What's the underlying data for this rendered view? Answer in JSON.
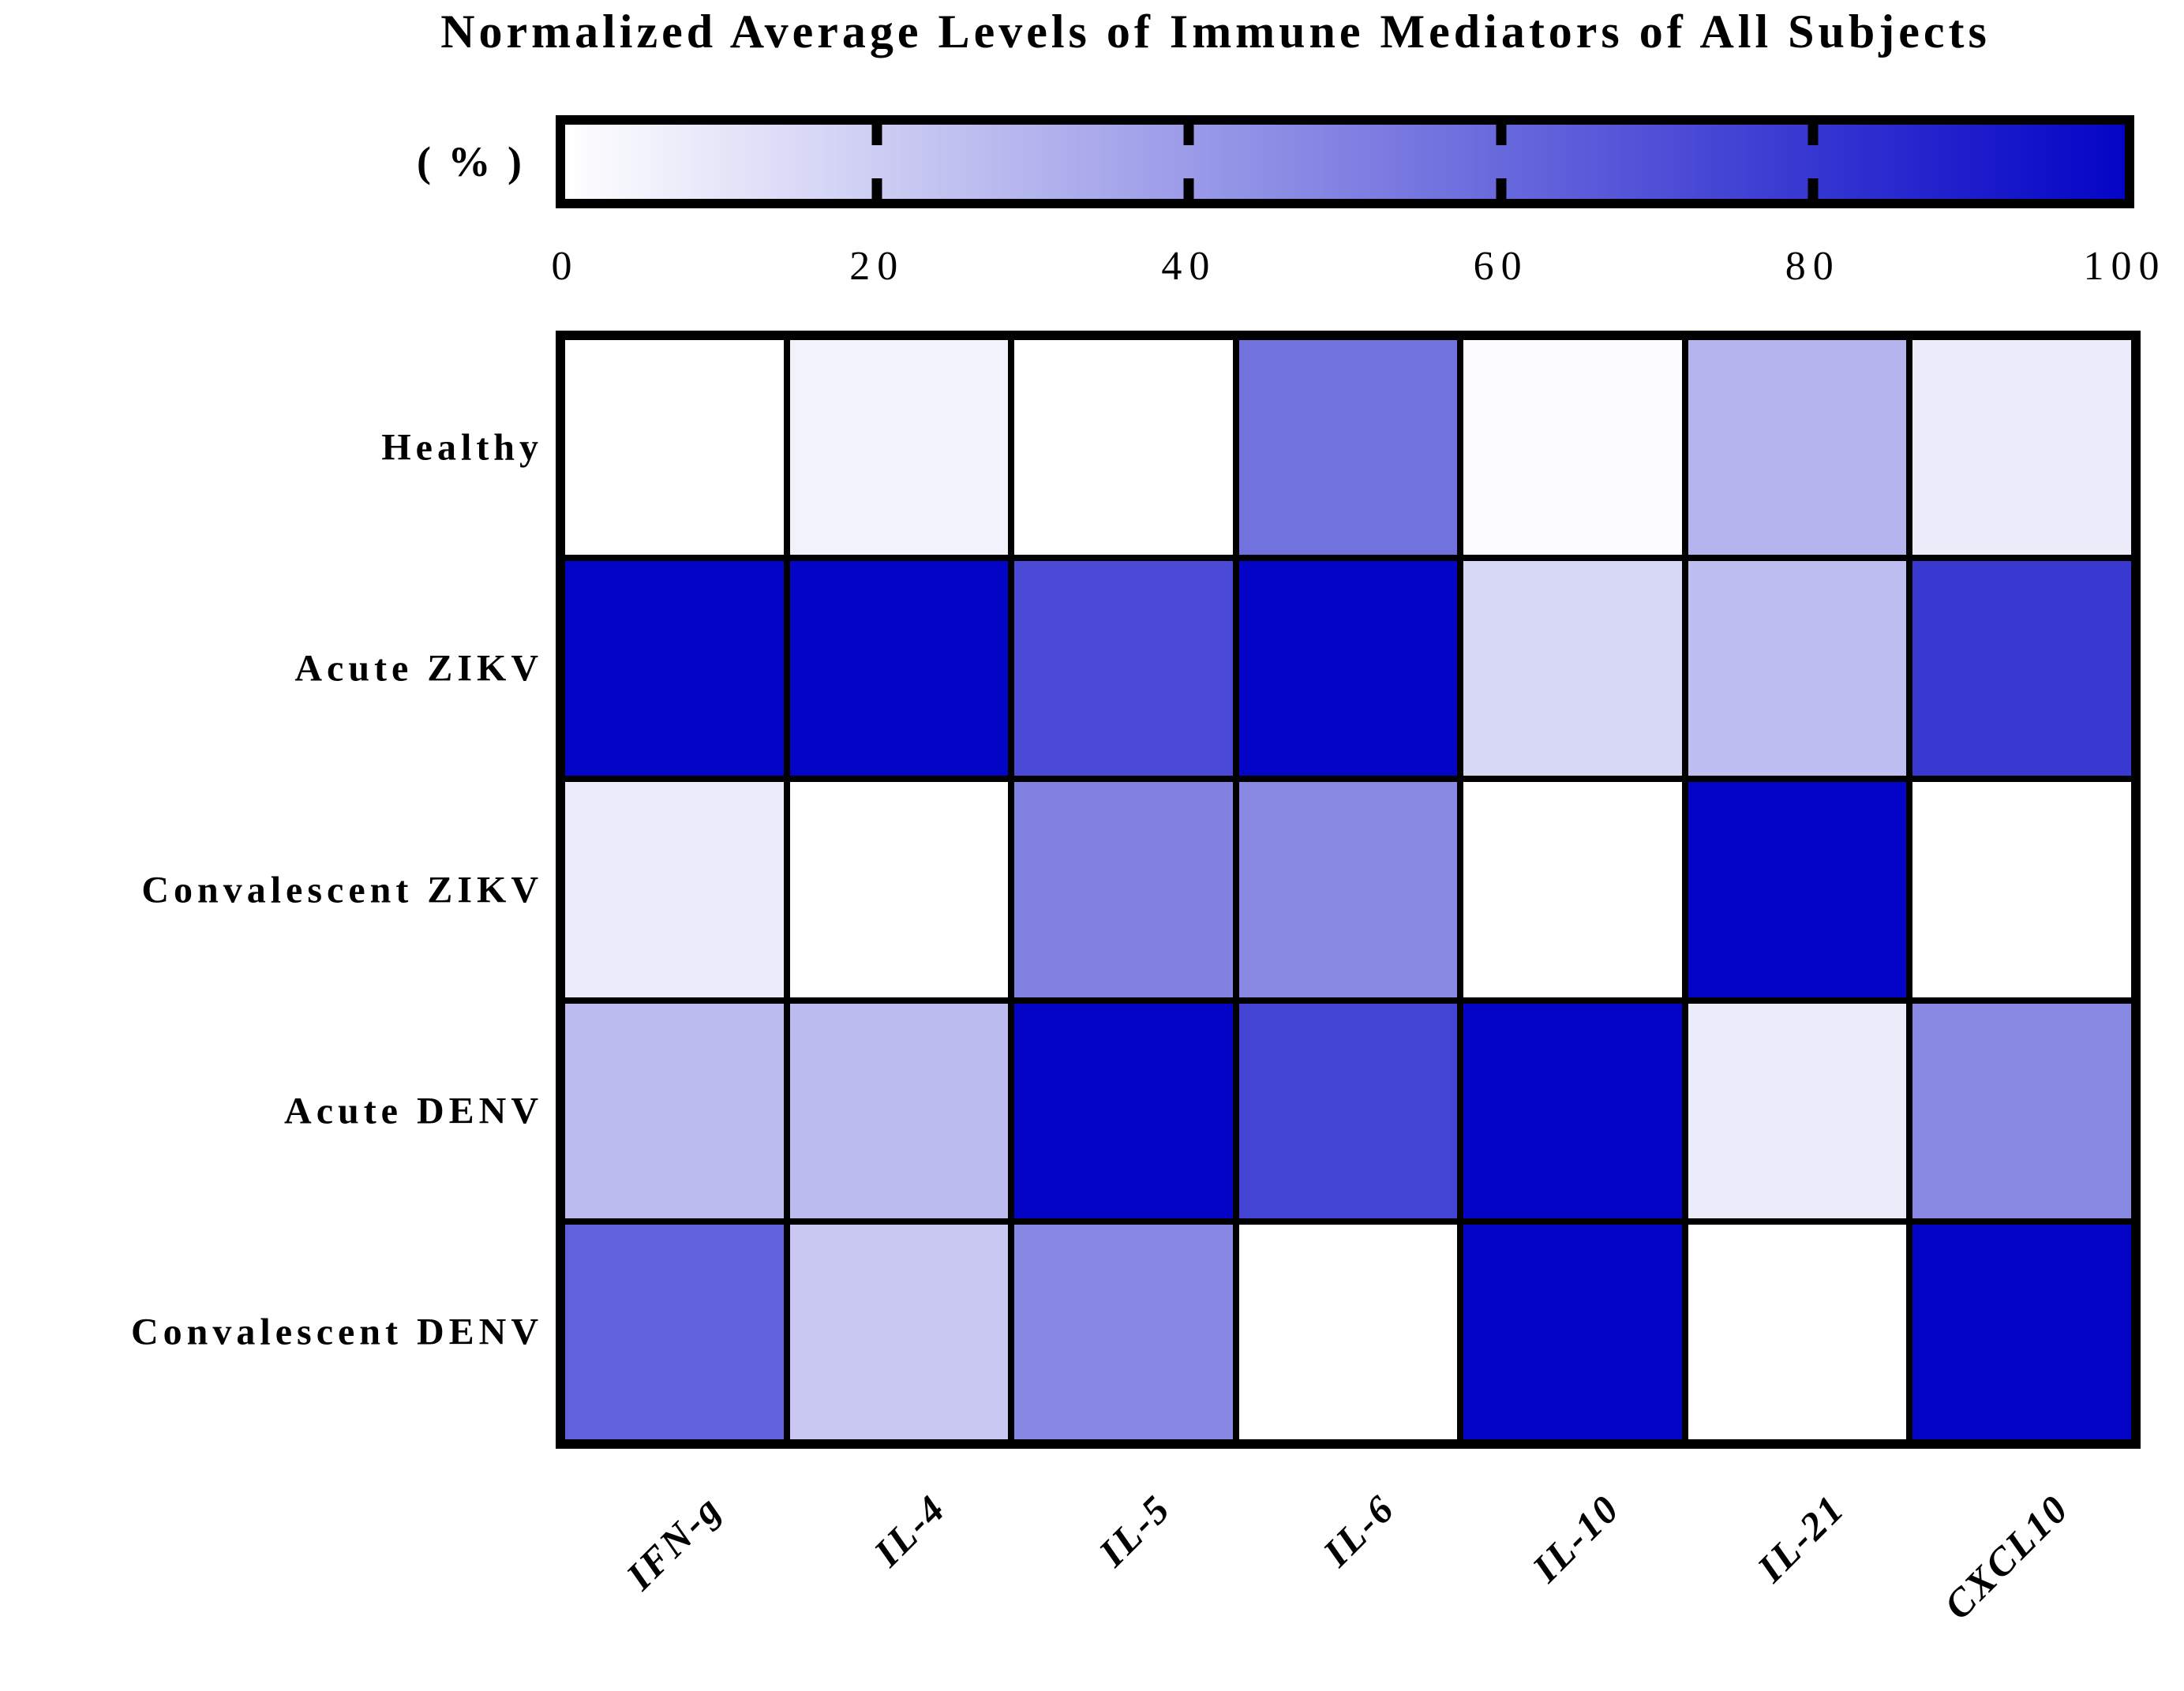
{
  "title": "Normalized Average Levels of Immune Mediators of All Subjects",
  "colorbar": {
    "unit_label": "( % )",
    "tick_labels": [
      "0",
      "20",
      "40",
      "60",
      "80",
      "100"
    ],
    "min_color": "#FFFFFF",
    "max_color": "#0404C6"
  },
  "chart_data": {
    "type": "heatmap",
    "title": "Normalized Average Levels of Immune Mediators of All Subjects",
    "unit": "%",
    "colormap": "white-to-blue",
    "legend_position": "top",
    "scale_min": 0,
    "scale_max": 100,
    "scale_ticks": [
      0,
      20,
      40,
      60,
      80,
      100
    ],
    "columns": [
      "IFN-g",
      "IL-4",
      "IL-5",
      "IL-6",
      "IL-10",
      "IL-21",
      "CXCL10"
    ],
    "rows": [
      "Healthy",
      "Acute ZIKV",
      "Convalescent ZIKV",
      "Acute DENV",
      "Convalescent DENV"
    ],
    "values_percent": [
      [
        0,
        5,
        0,
        56,
        1,
        30,
        8
      ],
      [
        100,
        100,
        72,
        100,
        16,
        26,
        79
      ],
      [
        8,
        0,
        50,
        47,
        0,
        100,
        0
      ],
      [
        27,
        27,
        100,
        74,
        100,
        8,
        47
      ],
      [
        63,
        22,
        48,
        0,
        100,
        0,
        100
      ]
    ]
  }
}
